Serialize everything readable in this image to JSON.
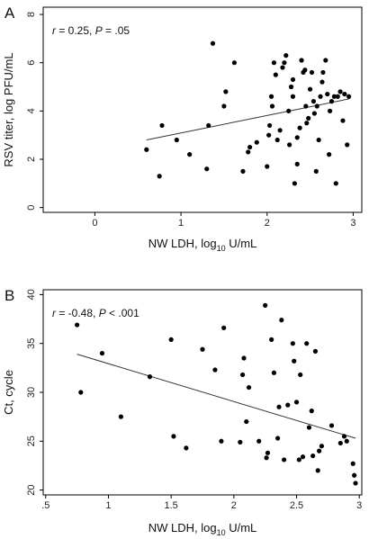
{
  "chart_data": [
    {
      "type": "scatter",
      "panel_label": "A",
      "annotation": {
        "r_symbol": "r",
        "r_text": " = 0.25, ",
        "p_symbol": "P",
        "p_text": " = .05"
      },
      "xlabel": {
        "prefix": "NW LDH, log",
        "sub": "10",
        "suffix": " U/mL"
      },
      "ylabel": "RSV titer, log PFU/mL",
      "xlim": [
        -0.6,
        3.1
      ],
      "ylim": [
        -0.2,
        8.3
      ],
      "xticks": [
        0,
        1,
        2,
        3
      ],
      "xtick_labels": [
        "0",
        "1",
        "2",
        "3"
      ],
      "yticks": [
        0,
        2,
        4,
        6,
        8
      ],
      "ytick_labels": [
        "0",
        "2",
        "4",
        "6",
        "8"
      ],
      "trend_line": {
        "x": [
          0.6,
          2.95
        ],
        "y": [
          2.8,
          4.5
        ]
      },
      "points": [
        [
          0.6,
          2.4
        ],
        [
          0.75,
          1.3
        ],
        [
          0.78,
          3.4
        ],
        [
          0.95,
          2.8
        ],
        [
          1.1,
          2.2
        ],
        [
          1.3,
          1.6
        ],
        [
          1.32,
          3.4
        ],
        [
          1.37,
          6.8
        ],
        [
          1.5,
          4.2
        ],
        [
          1.52,
          4.8
        ],
        [
          1.62,
          6.0
        ],
        [
          1.72,
          1.5
        ],
        [
          1.78,
          2.3
        ],
        [
          1.8,
          2.5
        ],
        [
          1.88,
          2.7
        ],
        [
          2.0,
          1.7
        ],
        [
          2.05,
          4.6
        ],
        [
          2.06,
          4.2
        ],
        [
          2.08,
          6.0
        ],
        [
          2.1,
          5.5
        ],
        [
          2.02,
          3.0
        ],
        [
          2.03,
          3.4
        ],
        [
          2.12,
          2.8
        ],
        [
          2.15,
          3.2
        ],
        [
          2.18,
          5.8
        ],
        [
          2.2,
          6.0
        ],
        [
          2.22,
          6.3
        ],
        [
          2.25,
          4.0
        ],
        [
          2.26,
          2.6
        ],
        [
          2.28,
          5.0
        ],
        [
          2.3,
          5.3
        ],
        [
          2.3,
          4.6
        ],
        [
          2.32,
          1.0
        ],
        [
          2.35,
          1.8
        ],
        [
          2.35,
          2.9
        ],
        [
          2.38,
          3.3
        ],
        [
          2.4,
          6.1
        ],
        [
          2.42,
          5.6
        ],
        [
          2.44,
          5.7
        ],
        [
          2.45,
          4.2
        ],
        [
          2.46,
          3.5
        ],
        [
          2.48,
          3.7
        ],
        [
          2.5,
          4.9
        ],
        [
          2.52,
          5.6
        ],
        [
          2.54,
          4.4
        ],
        [
          2.55,
          3.9
        ],
        [
          2.57,
          1.5
        ],
        [
          2.58,
          4.2
        ],
        [
          2.6,
          2.8
        ],
        [
          2.62,
          4.6
        ],
        [
          2.64,
          5.2
        ],
        [
          2.65,
          5.6
        ],
        [
          2.68,
          6.1
        ],
        [
          2.7,
          4.7
        ],
        [
          2.72,
          2.2
        ],
        [
          2.73,
          4.0
        ],
        [
          2.75,
          4.4
        ],
        [
          2.78,
          4.6
        ],
        [
          2.8,
          1.0
        ],
        [
          2.82,
          4.6
        ],
        [
          2.85,
          4.8
        ],
        [
          2.88,
          3.6
        ],
        [
          2.9,
          4.7
        ],
        [
          2.93,
          2.6
        ],
        [
          2.95,
          4.6
        ]
      ]
    },
    {
      "type": "scatter",
      "panel_label": "B",
      "annotation": {
        "r_symbol": "r",
        "r_text": " = -0.48, ",
        "p_symbol": "P",
        "p_text": " < .001"
      },
      "xlabel": {
        "prefix": "NW LDH, log",
        "sub": "10",
        "suffix": " U/mL"
      },
      "ylabel": "Ct, cycle",
      "xlim": [
        0.48,
        3.02
      ],
      "ylim": [
        19.5,
        40.5
      ],
      "xticks": [
        0.5,
        1.0,
        1.5,
        2.0,
        2.5,
        3.0
      ],
      "xtick_labels": [
        ".5",
        "1",
        "1.5",
        "2",
        "2.5",
        "3"
      ],
      "yticks": [
        20,
        25,
        30,
        35,
        40
      ],
      "ytick_labels": [
        "20",
        "25",
        "30",
        "35",
        "40"
      ],
      "trend_line": {
        "x": [
          0.75,
          2.97
        ],
        "y": [
          33.9,
          25.3
        ]
      },
      "points": [
        [
          0.75,
          36.9
        ],
        [
          0.78,
          30.0
        ],
        [
          0.95,
          34.0
        ],
        [
          1.1,
          27.5
        ],
        [
          1.33,
          31.6
        ],
        [
          1.5,
          35.4
        ],
        [
          1.52,
          25.5
        ],
        [
          1.62,
          24.3
        ],
        [
          1.75,
          34.4
        ],
        [
          1.85,
          32.3
        ],
        [
          1.9,
          25.0
        ],
        [
          1.92,
          36.6
        ],
        [
          2.05,
          24.9
        ],
        [
          2.07,
          31.8
        ],
        [
          2.08,
          33.5
        ],
        [
          2.1,
          27.0
        ],
        [
          2.12,
          30.5
        ],
        [
          2.2,
          25.0
        ],
        [
          2.25,
          38.9
        ],
        [
          2.26,
          23.3
        ],
        [
          2.27,
          23.8
        ],
        [
          2.3,
          35.4
        ],
        [
          2.32,
          32.0
        ],
        [
          2.35,
          25.3
        ],
        [
          2.36,
          28.5
        ],
        [
          2.38,
          37.4
        ],
        [
          2.4,
          23.1
        ],
        [
          2.43,
          28.7
        ],
        [
          2.47,
          35.0
        ],
        [
          2.48,
          33.2
        ],
        [
          2.5,
          29.0
        ],
        [
          2.52,
          23.1
        ],
        [
          2.53,
          31.8
        ],
        [
          2.55,
          23.4
        ],
        [
          2.58,
          35.0
        ],
        [
          2.6,
          26.4
        ],
        [
          2.62,
          28.1
        ],
        [
          2.63,
          23.5
        ],
        [
          2.65,
          34.2
        ],
        [
          2.67,
          22.0
        ],
        [
          2.68,
          24.0
        ],
        [
          2.7,
          24.5
        ],
        [
          2.78,
          26.6
        ],
        [
          2.85,
          24.8
        ],
        [
          2.88,
          25.5
        ],
        [
          2.9,
          25.0
        ],
        [
          2.95,
          22.7
        ],
        [
          2.96,
          21.5
        ],
        [
          2.97,
          20.7
        ]
      ]
    }
  ]
}
